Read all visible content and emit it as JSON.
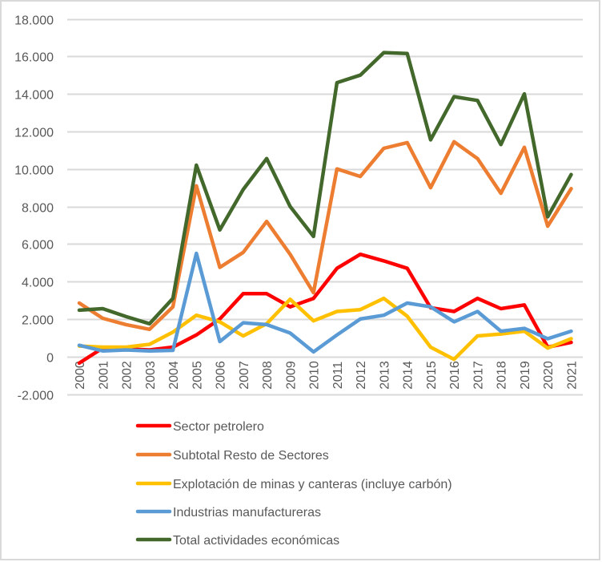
{
  "chart_data": {
    "type": "line",
    "title": "",
    "xlabel": "",
    "ylabel": "",
    "ylim": [
      -2000,
      18000
    ],
    "y_ticks": [
      -2000,
      0,
      2000,
      4000,
      6000,
      8000,
      10000,
      12000,
      14000,
      16000,
      18000
    ],
    "y_tick_labels": [
      "-2.000",
      "0",
      "2.000",
      "4.000",
      "6.000",
      "8.000",
      "10.000",
      "12.000",
      "14.000",
      "16.000",
      "18.000"
    ],
    "grid": true,
    "legend_position": "bottom",
    "categories": [
      "2000",
      "2001",
      "2002",
      "2003",
      "2004",
      "2005",
      "2006",
      "2007",
      "2008",
      "2009",
      "2010",
      "2011",
      "2012",
      "2013",
      "2014",
      "2015",
      "2016",
      "2017",
      "2018",
      "2019",
      "2020",
      "2021"
    ],
    "series": [
      {
        "name": "Sector petrolero",
        "color": "#ff0000",
        "values": [
          -350,
          450,
          400,
          350,
          500,
          1150,
          2000,
          3350,
          3350,
          2650,
          3100,
          4700,
          5450,
          5100,
          4700,
          2600,
          2400,
          3100,
          2550,
          2750,
          500,
          750
        ]
      },
      {
        "name": "Subtotal Resto de Sectores",
        "color": "#ed7d31",
        "values": [
          2850,
          2040,
          1700,
          1450,
          2650,
          9100,
          4750,
          5550,
          7200,
          5450,
          3400,
          10000,
          9600,
          11100,
          11400,
          9000,
          11450,
          10550,
          8700,
          11150,
          6950,
          8950
        ]
      },
      {
        "name": "Explotación de minas y canteras (incluye carbón)",
        "color": "#ffc000",
        "values": [
          560,
          500,
          500,
          650,
          1300,
          2200,
          1850,
          1100,
          1750,
          3050,
          1900,
          2400,
          2500,
          3100,
          2150,
          500,
          -150,
          1100,
          1200,
          1350,
          450,
          950
        ]
      },
      {
        "name": "Industrias manufactureras",
        "color": "#5b9bd5",
        "values": [
          600,
          300,
          350,
          300,
          330,
          5500,
          800,
          1800,
          1700,
          1250,
          250,
          1150,
          2000,
          2200,
          2850,
          2650,
          1850,
          2400,
          1350,
          1500,
          950,
          1350
        ]
      },
      {
        "name": "Total actividades económicas",
        "color": "#43682b",
        "values": [
          2470,
          2550,
          2130,
          1750,
          3100,
          10200,
          6750,
          8900,
          10550,
          8000,
          6400,
          14600,
          15000,
          16200,
          16150,
          11550,
          13850,
          13650,
          11300,
          14000,
          7450,
          9700
        ]
      }
    ]
  }
}
